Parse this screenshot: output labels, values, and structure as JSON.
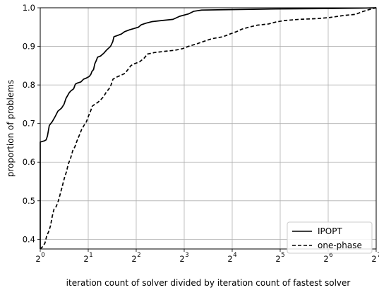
{
  "chart_data": {
    "type": "line",
    "title": "",
    "xlabel": "iteration count of solver divided by iteration count of fastest solver",
    "ylabel": "proportion of problems",
    "x_scale": "log2",
    "xlim": [
      1,
      128
    ],
    "ylim": [
      0.375,
      1.0
    ],
    "x_ticks": [
      {
        "value": 1,
        "base": "2",
        "exp": "0"
      },
      {
        "value": 2,
        "base": "2",
        "exp": "1"
      },
      {
        "value": 4,
        "base": "2",
        "exp": "2"
      },
      {
        "value": 8,
        "base": "2",
        "exp": "3"
      },
      {
        "value": 16,
        "base": "2",
        "exp": "4"
      },
      {
        "value": 32,
        "base": "2",
        "exp": "5"
      },
      {
        "value": 64,
        "base": "2",
        "exp": "6"
      },
      {
        "value": 128,
        "base": "2",
        "exp": "7"
      }
    ],
    "y_ticks": [
      {
        "value": 0.4,
        "label": "0.4"
      },
      {
        "value": 0.5,
        "label": "0.5"
      },
      {
        "value": 0.6,
        "label": "0.6"
      },
      {
        "value": 0.7,
        "label": "0.7"
      },
      {
        "value": 0.8,
        "label": "0.8"
      },
      {
        "value": 0.9,
        "label": "0.9"
      },
      {
        "value": 1.0,
        "label": "1.0"
      }
    ],
    "grid": true,
    "legend_position": "lower-right",
    "series": [
      {
        "name": "IPOPT",
        "style": "solid",
        "color": "#000000",
        "points": [
          [
            1.0,
            0.375
          ],
          [
            1.0,
            0.652
          ],
          [
            1.06,
            0.655
          ],
          [
            1.09,
            0.658
          ],
          [
            1.11,
            0.668
          ],
          [
            1.14,
            0.695
          ],
          [
            1.19,
            0.705
          ],
          [
            1.24,
            0.718
          ],
          [
            1.29,
            0.732
          ],
          [
            1.36,
            0.74
          ],
          [
            1.41,
            0.75
          ],
          [
            1.45,
            0.765
          ],
          [
            1.52,
            0.78
          ],
          [
            1.56,
            0.785
          ],
          [
            1.62,
            0.79
          ],
          [
            1.66,
            0.802
          ],
          [
            1.71,
            0.805
          ],
          [
            1.8,
            0.808
          ],
          [
            1.87,
            0.815
          ],
          [
            1.95,
            0.818
          ],
          [
            2.03,
            0.822
          ],
          [
            2.08,
            0.828
          ],
          [
            2.11,
            0.835
          ],
          [
            2.16,
            0.84
          ],
          [
            2.2,
            0.855
          ],
          [
            2.24,
            0.862
          ],
          [
            2.29,
            0.872
          ],
          [
            2.39,
            0.875
          ],
          [
            2.5,
            0.882
          ],
          [
            2.6,
            0.89
          ],
          [
            2.76,
            0.9
          ],
          [
            2.85,
            0.912
          ],
          [
            2.9,
            0.925
          ],
          [
            3.04,
            0.928
          ],
          [
            3.23,
            0.932
          ],
          [
            3.38,
            0.938
          ],
          [
            3.64,
            0.943
          ],
          [
            3.86,
            0.946
          ],
          [
            4.14,
            0.95
          ],
          [
            4.3,
            0.956
          ],
          [
            4.6,
            0.96
          ],
          [
            5.0,
            0.964
          ],
          [
            5.8,
            0.967
          ],
          [
            6.8,
            0.97
          ],
          [
            7.5,
            0.978
          ],
          [
            8.5,
            0.984
          ],
          [
            9.2,
            0.991
          ],
          [
            10.3,
            0.994
          ],
          [
            14,
            0.995
          ],
          [
            30,
            0.997
          ],
          [
            60,
            0.998
          ],
          [
            100,
            0.999
          ],
          [
            128,
            1.0
          ]
        ]
      },
      {
        "name": "one-phase",
        "style": "dashed",
        "color": "#000000",
        "points": [
          [
            1.0,
            0.375
          ],
          [
            1.04,
            0.382
          ],
          [
            1.07,
            0.39
          ],
          [
            1.1,
            0.41
          ],
          [
            1.13,
            0.42
          ],
          [
            1.16,
            0.435
          ],
          [
            1.19,
            0.46
          ],
          [
            1.22,
            0.478
          ],
          [
            1.26,
            0.485
          ],
          [
            1.3,
            0.5
          ],
          [
            1.34,
            0.52
          ],
          [
            1.38,
            0.54
          ],
          [
            1.42,
            0.56
          ],
          [
            1.46,
            0.575
          ],
          [
            1.5,
            0.595
          ],
          [
            1.55,
            0.61
          ],
          [
            1.6,
            0.63
          ],
          [
            1.65,
            0.64
          ],
          [
            1.7,
            0.655
          ],
          [
            1.76,
            0.67
          ],
          [
            1.82,
            0.685
          ],
          [
            1.88,
            0.695
          ],
          [
            1.95,
            0.705
          ],
          [
            2.01,
            0.72
          ],
          [
            2.06,
            0.73
          ],
          [
            2.12,
            0.745
          ],
          [
            2.2,
            0.75
          ],
          [
            2.3,
            0.755
          ],
          [
            2.4,
            0.762
          ],
          [
            2.5,
            0.77
          ],
          [
            2.6,
            0.782
          ],
          [
            2.7,
            0.79
          ],
          [
            2.78,
            0.8
          ],
          [
            2.86,
            0.815
          ],
          [
            3.0,
            0.82
          ],
          [
            3.2,
            0.825
          ],
          [
            3.4,
            0.83
          ],
          [
            3.55,
            0.84
          ],
          [
            3.7,
            0.85
          ],
          [
            3.9,
            0.855
          ],
          [
            4.2,
            0.86
          ],
          [
            4.5,
            0.87
          ],
          [
            4.7,
            0.88
          ],
          [
            5.2,
            0.884
          ],
          [
            6.0,
            0.887
          ],
          [
            7.0,
            0.89
          ],
          [
            7.8,
            0.894
          ],
          [
            8.5,
            0.9
          ],
          [
            9.5,
            0.906
          ],
          [
            10.8,
            0.914
          ],
          [
            12.0,
            0.92
          ],
          [
            14.0,
            0.925
          ],
          [
            15.5,
            0.932
          ],
          [
            17.0,
            0.938
          ],
          [
            18.5,
            0.945
          ],
          [
            20.5,
            0.95
          ],
          [
            23.0,
            0.955
          ],
          [
            27.0,
            0.958
          ],
          [
            30.0,
            0.963
          ],
          [
            34.0,
            0.967
          ],
          [
            42.0,
            0.97
          ],
          [
            55.0,
            0.972
          ],
          [
            66.0,
            0.975
          ],
          [
            80.0,
            0.98
          ],
          [
            95.0,
            0.983
          ],
          [
            105.0,
            0.99
          ],
          [
            115.0,
            0.995
          ],
          [
            122.0,
            0.998
          ],
          [
            128.0,
            1.0
          ]
        ]
      }
    ]
  }
}
